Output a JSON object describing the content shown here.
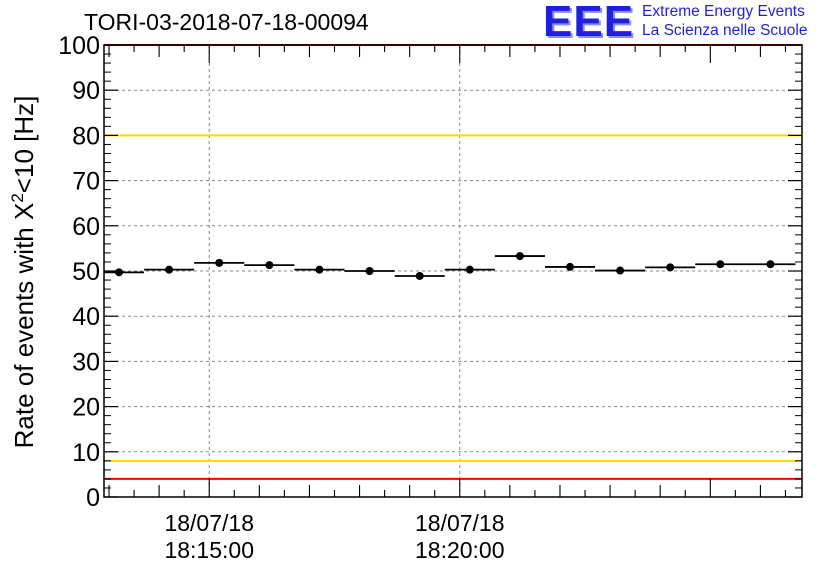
{
  "header": {
    "run_id": "TORI-03-2018-07-18-00094",
    "logo_mark": "EEE",
    "logo_line1": "Extreme Energy Events",
    "logo_line2": "La Scienza nelle Scuole"
  },
  "colors": {
    "red_threshold": "#ff0000",
    "yellow_threshold": "#ffd700",
    "brand_blue": "#1f1fe0",
    "points": "#000000"
  },
  "chart_data": {
    "type": "scatter",
    "title": "TORI-03-2018-07-18-00094",
    "ylabel_main": "Rate of events with X",
    "ylabel_sup": "2",
    "ylabel_tail": "<10 [Hz]",
    "xlabel": "",
    "ylim": [
      0,
      100
    ],
    "xlim_minutes": [
      12.9,
      26.83
    ],
    "y_ticks": [
      0,
      10,
      20,
      30,
      40,
      50,
      60,
      70,
      80,
      90,
      100
    ],
    "x_tick_labels": [
      {
        "minute": 15,
        "date": "18/07/18",
        "time": "18:15:00"
      },
      {
        "minute": 20,
        "date": "18/07/18",
        "time": "18:20:00"
      }
    ],
    "bin_width_minutes": 1,
    "x_minutes": [
      13.2,
      14.2,
      15.2,
      16.2,
      17.2,
      18.2,
      19.2,
      20.2,
      21.2,
      22.2,
      23.2,
      24.2,
      25.2,
      26.2
    ],
    "values": [
      49.7,
      50.3,
      51.8,
      51.3,
      50.3,
      50.0,
      48.9,
      50.3,
      53.3,
      50.9,
      50.1,
      50.8,
      51.5,
      51.5
    ],
    "thresholds": [
      {
        "value": 100,
        "color": "red"
      },
      {
        "value": 80,
        "color": "yellow"
      },
      {
        "value": 8,
        "color": "yellow"
      },
      {
        "value": 4,
        "color": "red"
      }
    ],
    "grid": true
  }
}
